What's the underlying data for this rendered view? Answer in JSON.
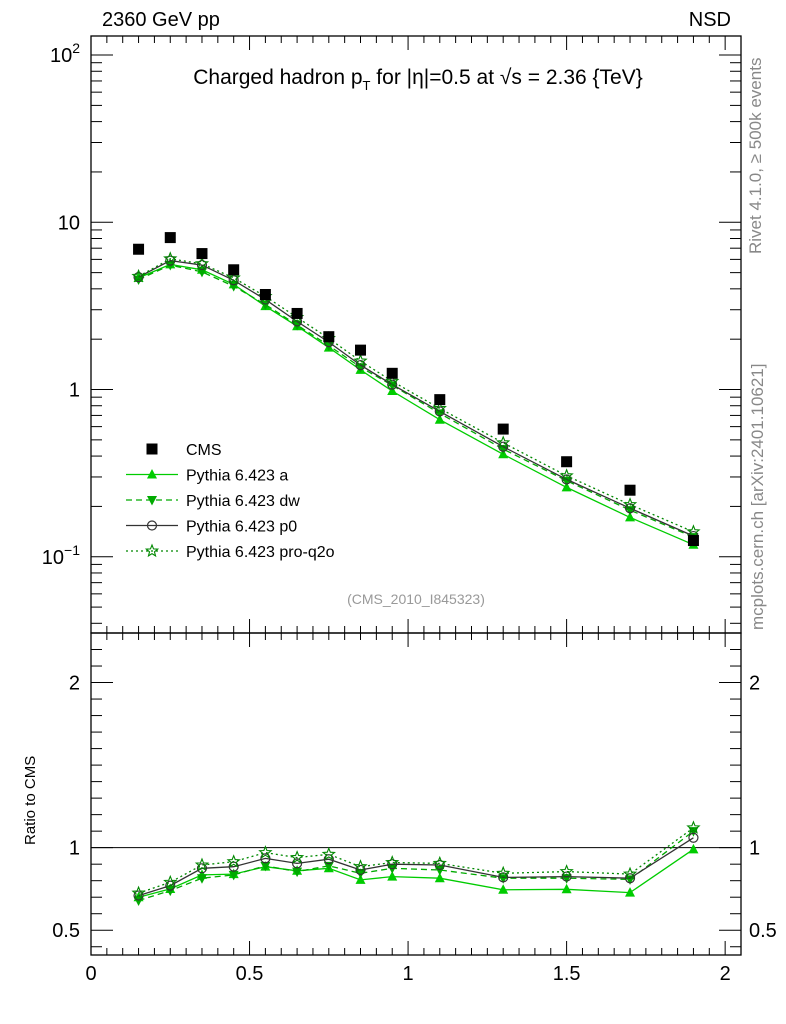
{
  "header": {
    "left": "2360 GeV pp",
    "right": "NSD"
  },
  "side": {
    "version": "Rivet 4.1.0, ≥ 500k events",
    "url": "mcplots.cern.ch [arXiv:2401.10621]"
  },
  "colors": {
    "cms": "#000000",
    "a": "#00cc00",
    "dw": "#00aa00",
    "p0": "#333333",
    "proq2o": "#008800"
  },
  "chart_data": {
    "type": "line",
    "title": {
      "pre": "Charged hadron p",
      "sub": "T",
      "post": " for |η|=0.5 at √s = 2.36 {TeV}"
    },
    "annotation": "(CMS_2010_I845323)",
    "xlabel": "",
    "xlim": [
      0,
      2.05
    ],
    "ylim": [
      0.035,
      130
    ],
    "yscale": "log",
    "yticks": [
      {
        "v": 0.1,
        "base": "10",
        "exp": "−1"
      },
      {
        "v": 1,
        "base": "1",
        "exp": ""
      },
      {
        "v": 10,
        "base": "10",
        "exp": ""
      },
      {
        "v": 100,
        "base": "10",
        "exp": "2"
      }
    ],
    "xticks": [
      {
        "v": 0,
        "label": "0"
      },
      {
        "v": 0.5,
        "label": "0.5"
      },
      {
        "v": 1,
        "label": "1"
      },
      {
        "v": 1.5,
        "label": "1.5"
      },
      {
        "v": 2,
        "label": "2"
      }
    ],
    "legend_position": "middle-left",
    "x": [
      0.15,
      0.25,
      0.35,
      0.45,
      0.55,
      0.65,
      0.75,
      0.85,
      0.95,
      1.1,
      1.3,
      1.5,
      1.7,
      1.9
    ],
    "data": {
      "name": "CMS",
      "values": [
        6.9,
        8.1,
        6.5,
        5.2,
        3.7,
        2.85,
        2.07,
        1.72,
        1.25,
        0.87,
        0.58,
        0.37,
        0.25,
        0.125
      ]
    },
    "series": [
      {
        "key": "a",
        "name": "Pythia 6.423 a",
        "marker": "triangle-up",
        "dash": "",
        "values": [
          4.65,
          5.6,
          5.2,
          4.25,
          3.15,
          2.39,
          1.78,
          1.31,
          0.98,
          0.66,
          0.41,
          0.26,
          0.172,
          0.118
        ],
        "ratio": [
          0.7,
          0.75,
          0.835,
          0.84,
          0.885,
          0.86,
          0.875,
          0.805,
          0.825,
          0.815,
          0.745,
          0.748,
          0.728,
          0.99
        ]
      },
      {
        "key": "dw",
        "name": "Pythia 6.423 dw",
        "marker": "triangle-down",
        "dash": "6,4",
        "values": [
          4.55,
          5.55,
          5.05,
          4.15,
          3.22,
          2.43,
          1.83,
          1.36,
          1.06,
          0.72,
          0.44,
          0.285,
          0.19,
          0.131
        ],
        "ratio": [
          0.68,
          0.74,
          0.815,
          0.835,
          0.89,
          0.855,
          0.89,
          0.845,
          0.875,
          0.865,
          0.815,
          0.815,
          0.808,
          1.1
        ]
      },
      {
        "key": "p0",
        "name": "Pythia 6.423 p0",
        "marker": "circle-open",
        "dash": "",
        "values": [
          4.7,
          5.9,
          5.55,
          4.5,
          3.45,
          2.55,
          1.92,
          1.4,
          1.07,
          0.74,
          0.455,
          0.29,
          0.195,
          0.133
        ],
        "ratio": [
          0.71,
          0.77,
          0.875,
          0.885,
          0.935,
          0.905,
          0.93,
          0.865,
          0.9,
          0.895,
          0.82,
          0.825,
          0.815,
          1.06
        ]
      },
      {
        "key": "proq2o",
        "name": "Pythia 6.423 pro-q2o",
        "marker": "star-open",
        "dash": "2,3",
        "values": [
          4.75,
          6.05,
          5.65,
          4.65,
          3.6,
          2.7,
          2.02,
          1.48,
          1.12,
          0.77,
          0.48,
          0.305,
          0.205,
          0.141
        ],
        "ratio": [
          0.725,
          0.79,
          0.895,
          0.915,
          0.97,
          0.94,
          0.96,
          0.885,
          0.91,
          0.905,
          0.845,
          0.855,
          0.84,
          1.12
        ]
      }
    ],
    "ratio_panel": {
      "ylabel": "Ratio to CMS",
      "ylim": [
        0.35,
        2.3
      ],
      "yticks": [
        {
          "v": 0.5,
          "label": "0.5"
        },
        {
          "v": 1,
          "label": "1"
        },
        {
          "v": 2,
          "label": "2"
        }
      ]
    }
  }
}
